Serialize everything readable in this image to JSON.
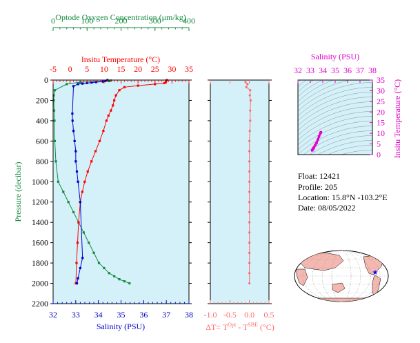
{
  "colors": {
    "plot_bg": "#d4f1f9",
    "oxygen": "#138a3e",
    "temperature": "#ff0000",
    "salinity": "#0000cc",
    "delta": "#ff6b6b",
    "ts": "#e000c8",
    "land": "#f5b8b0"
  },
  "info": {
    "float": "Float:  12421",
    "profile": "Profile:  205",
    "location": "Location:  15.8°N  -103.2°E",
    "date": "Date:  08/05/2022"
  },
  "chart_data": [
    {
      "id": "main-profile",
      "type": "line",
      "ylabel": "Pressure (decibar)",
      "ylim": [
        2200,
        0
      ],
      "yticks": [
        "0",
        "200",
        "400",
        "600",
        "800",
        "1000",
        "1200",
        "1400",
        "1600",
        "1800",
        "2000",
        "2200"
      ],
      "axes": {
        "oxygen": {
          "label": "Optode Oxygen Concentration (μm/kg)",
          "range": [
            0,
            400
          ],
          "ticks": [
            "0",
            "100",
            "200",
            "300",
            "400"
          ]
        },
        "temperature": {
          "label": "Insitu Temperature (°C)",
          "range": [
            -5,
            35
          ],
          "ticks": [
            "-5",
            "0",
            "5",
            "10",
            "15",
            "20",
            "25",
            "30",
            "35"
          ]
        },
        "salinity": {
          "label": "Salinity (PSU)",
          "range": [
            32,
            38
          ],
          "ticks": [
            "32",
            "33",
            "34",
            "35",
            "36",
            "37",
            "38"
          ]
        }
      },
      "series": [
        {
          "key": "oxygen",
          "x": [
            170,
            165,
            80,
            40,
            5,
            2,
            2,
            3,
            4,
            5,
            8,
            15,
            30,
            45,
            60,
            75,
            90,
            105,
            120,
            135,
            150,
            165,
            180,
            195,
            210,
            225
          ],
          "y": [
            5,
            10,
            20,
            40,
            100,
            150,
            200,
            300,
            400,
            600,
            800,
            1000,
            1100,
            1200,
            1300,
            1400,
            1500,
            1600,
            1700,
            1800,
            1850,
            1900,
            1930,
            1960,
            1980,
            2000
          ]
        },
        {
          "key": "temperature",
          "x": [
            28.5,
            28.2,
            27.8,
            25.0,
            20.0,
            16.0,
            14.5,
            13.5,
            13.0,
            12.6,
            12.0,
            11.3,
            10.7,
            9.8,
            8.7,
            7.5,
            6.3,
            5.2,
            4.3,
            3.6,
            3.0,
            2.5,
            2.2,
            1.9,
            1.7
          ],
          "y": [
            0,
            20,
            30,
            40,
            55,
            70,
            100,
            150,
            200,
            250,
            300,
            350,
            400,
            500,
            600,
            700,
            800,
            900,
            1000,
            1100,
            1200,
            1400,
            1600,
            1800,
            2000
          ]
        },
        {
          "key": "salinity",
          "x": [
            34.4,
            34.3,
            34.2,
            33.9,
            33.7,
            33.5,
            33.3,
            33.1,
            32.9,
            32.85,
            32.86,
            32.9,
            32.95,
            33.0,
            33.0,
            33.05,
            33.1,
            33.2,
            33.3,
            33.2,
            33.1,
            33.05
          ],
          "y": [
            0,
            10,
            15,
            20,
            25,
            30,
            35,
            40,
            60,
            330,
            400,
            500,
            600,
            700,
            800,
            900,
            1000,
            1200,
            1750,
            1850,
            1950,
            2000
          ]
        }
      ]
    },
    {
      "id": "delta-profile",
      "type": "line",
      "xlabel": "ΔT= T",
      "xlabel_sup1": "Opt",
      "xlabel_mid": " - T",
      "xlabel_sup2": "SBE",
      "xlabel_end": " (°C)",
      "xlim": [
        -1.0,
        0.5
      ],
      "ylim": [
        2200,
        0
      ],
      "xticks": [
        "-1.0",
        "-0.5",
        "0.0",
        "0.5"
      ],
      "series": [
        {
          "key": "delta",
          "x": [
            -0.1,
            -0.05,
            -0.08,
            0.02,
            0.01,
            0.03,
            0.02,
            0.02,
            0.01,
            0.0,
            0.0,
            0.0,
            0.0,
            0.0,
            0.0,
            0.0,
            0.0,
            0.0,
            0.0,
            0.0,
            0.0,
            0.0,
            0.0,
            0.0
          ],
          "y": [
            20,
            40,
            70,
            100,
            150,
            200,
            300,
            400,
            500,
            600,
            700,
            800,
            900,
            1000,
            1100,
            1200,
            1300,
            1400,
            1500,
            1600,
            1700,
            1800,
            1900,
            2000
          ]
        }
      ]
    },
    {
      "id": "ts-diagram",
      "type": "scatter",
      "xlabel": "Salinity (PSU)",
      "ylabel": "Insitu Temperature (°C)",
      "xlim": [
        32,
        38
      ],
      "ylim": [
        0,
        35
      ],
      "xticks": [
        "32",
        "33",
        "34",
        "35",
        "36",
        "37",
        "38"
      ],
      "yticks": [
        "0",
        "5",
        "10",
        "15",
        "20",
        "25",
        "30",
        "35"
      ],
      "series": [
        {
          "key": "ts",
          "x": [
            33.85,
            33.8,
            33.7,
            33.6,
            33.5,
            33.4,
            33.3,
            33.25,
            33.2,
            33.15
          ],
          "y": [
            10.5,
            10.0,
            8.5,
            7.0,
            5.5,
            4.5,
            3.5,
            3.0,
            2.5,
            2.0
          ]
        }
      ]
    }
  ]
}
